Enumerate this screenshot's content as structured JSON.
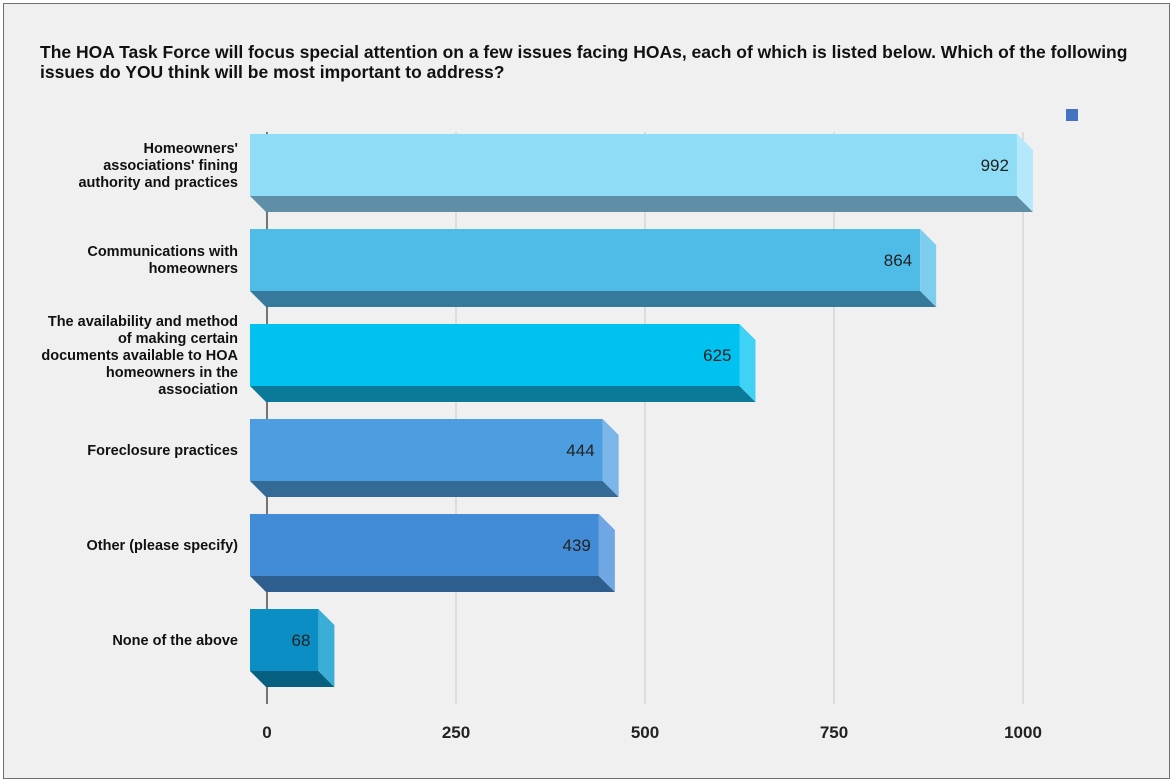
{
  "chart_data": {
    "type": "bar",
    "orientation": "horizontal",
    "style": "3d",
    "title": "The HOA Task Force will focus special attention on a few issues facing HOAs, each of which is listed below. Which of the following issues do YOU think will be most important to address?",
    "categories": [
      "Homeowners' associations' fining authority and practices",
      "Communications with homeowners",
      "The availability and method of making certain documents available to HOA homeowners in the association",
      "Foreclosure practices",
      "Other (please specify)",
      "None of the above"
    ],
    "values": [
      992,
      864,
      625,
      444,
      439,
      68
    ],
    "value_labels": [
      "992",
      "864",
      "625",
      "444",
      "439",
      "68"
    ],
    "xticks": [
      "0",
      "250",
      "500",
      "750",
      "1000"
    ],
    "xlim": [
      0,
      1000
    ],
    "grid": true,
    "legend": {
      "position": "top-right",
      "color": "#4472c4"
    },
    "colors": [
      {
        "front": "#8fdcf7",
        "bottom": "#5e8fa6",
        "side": "#b4e8fa"
      },
      {
        "front": "#4fbce8",
        "bottom": "#357a9a",
        "side": "#7dcdef"
      },
      {
        "front": "#00c2f0",
        "bottom": "#0a7a98",
        "side": "#40d2f5"
      },
      {
        "front": "#4c9ee0",
        "bottom": "#336a96",
        "side": "#7ab6e8"
      },
      {
        "front": "#428bd6",
        "bottom": "#2d5e8e",
        "side": "#70a6e2"
      },
      {
        "front": "#0a8ec4",
        "bottom": "#07607f",
        "side": "#3aaed6"
      }
    ]
  }
}
